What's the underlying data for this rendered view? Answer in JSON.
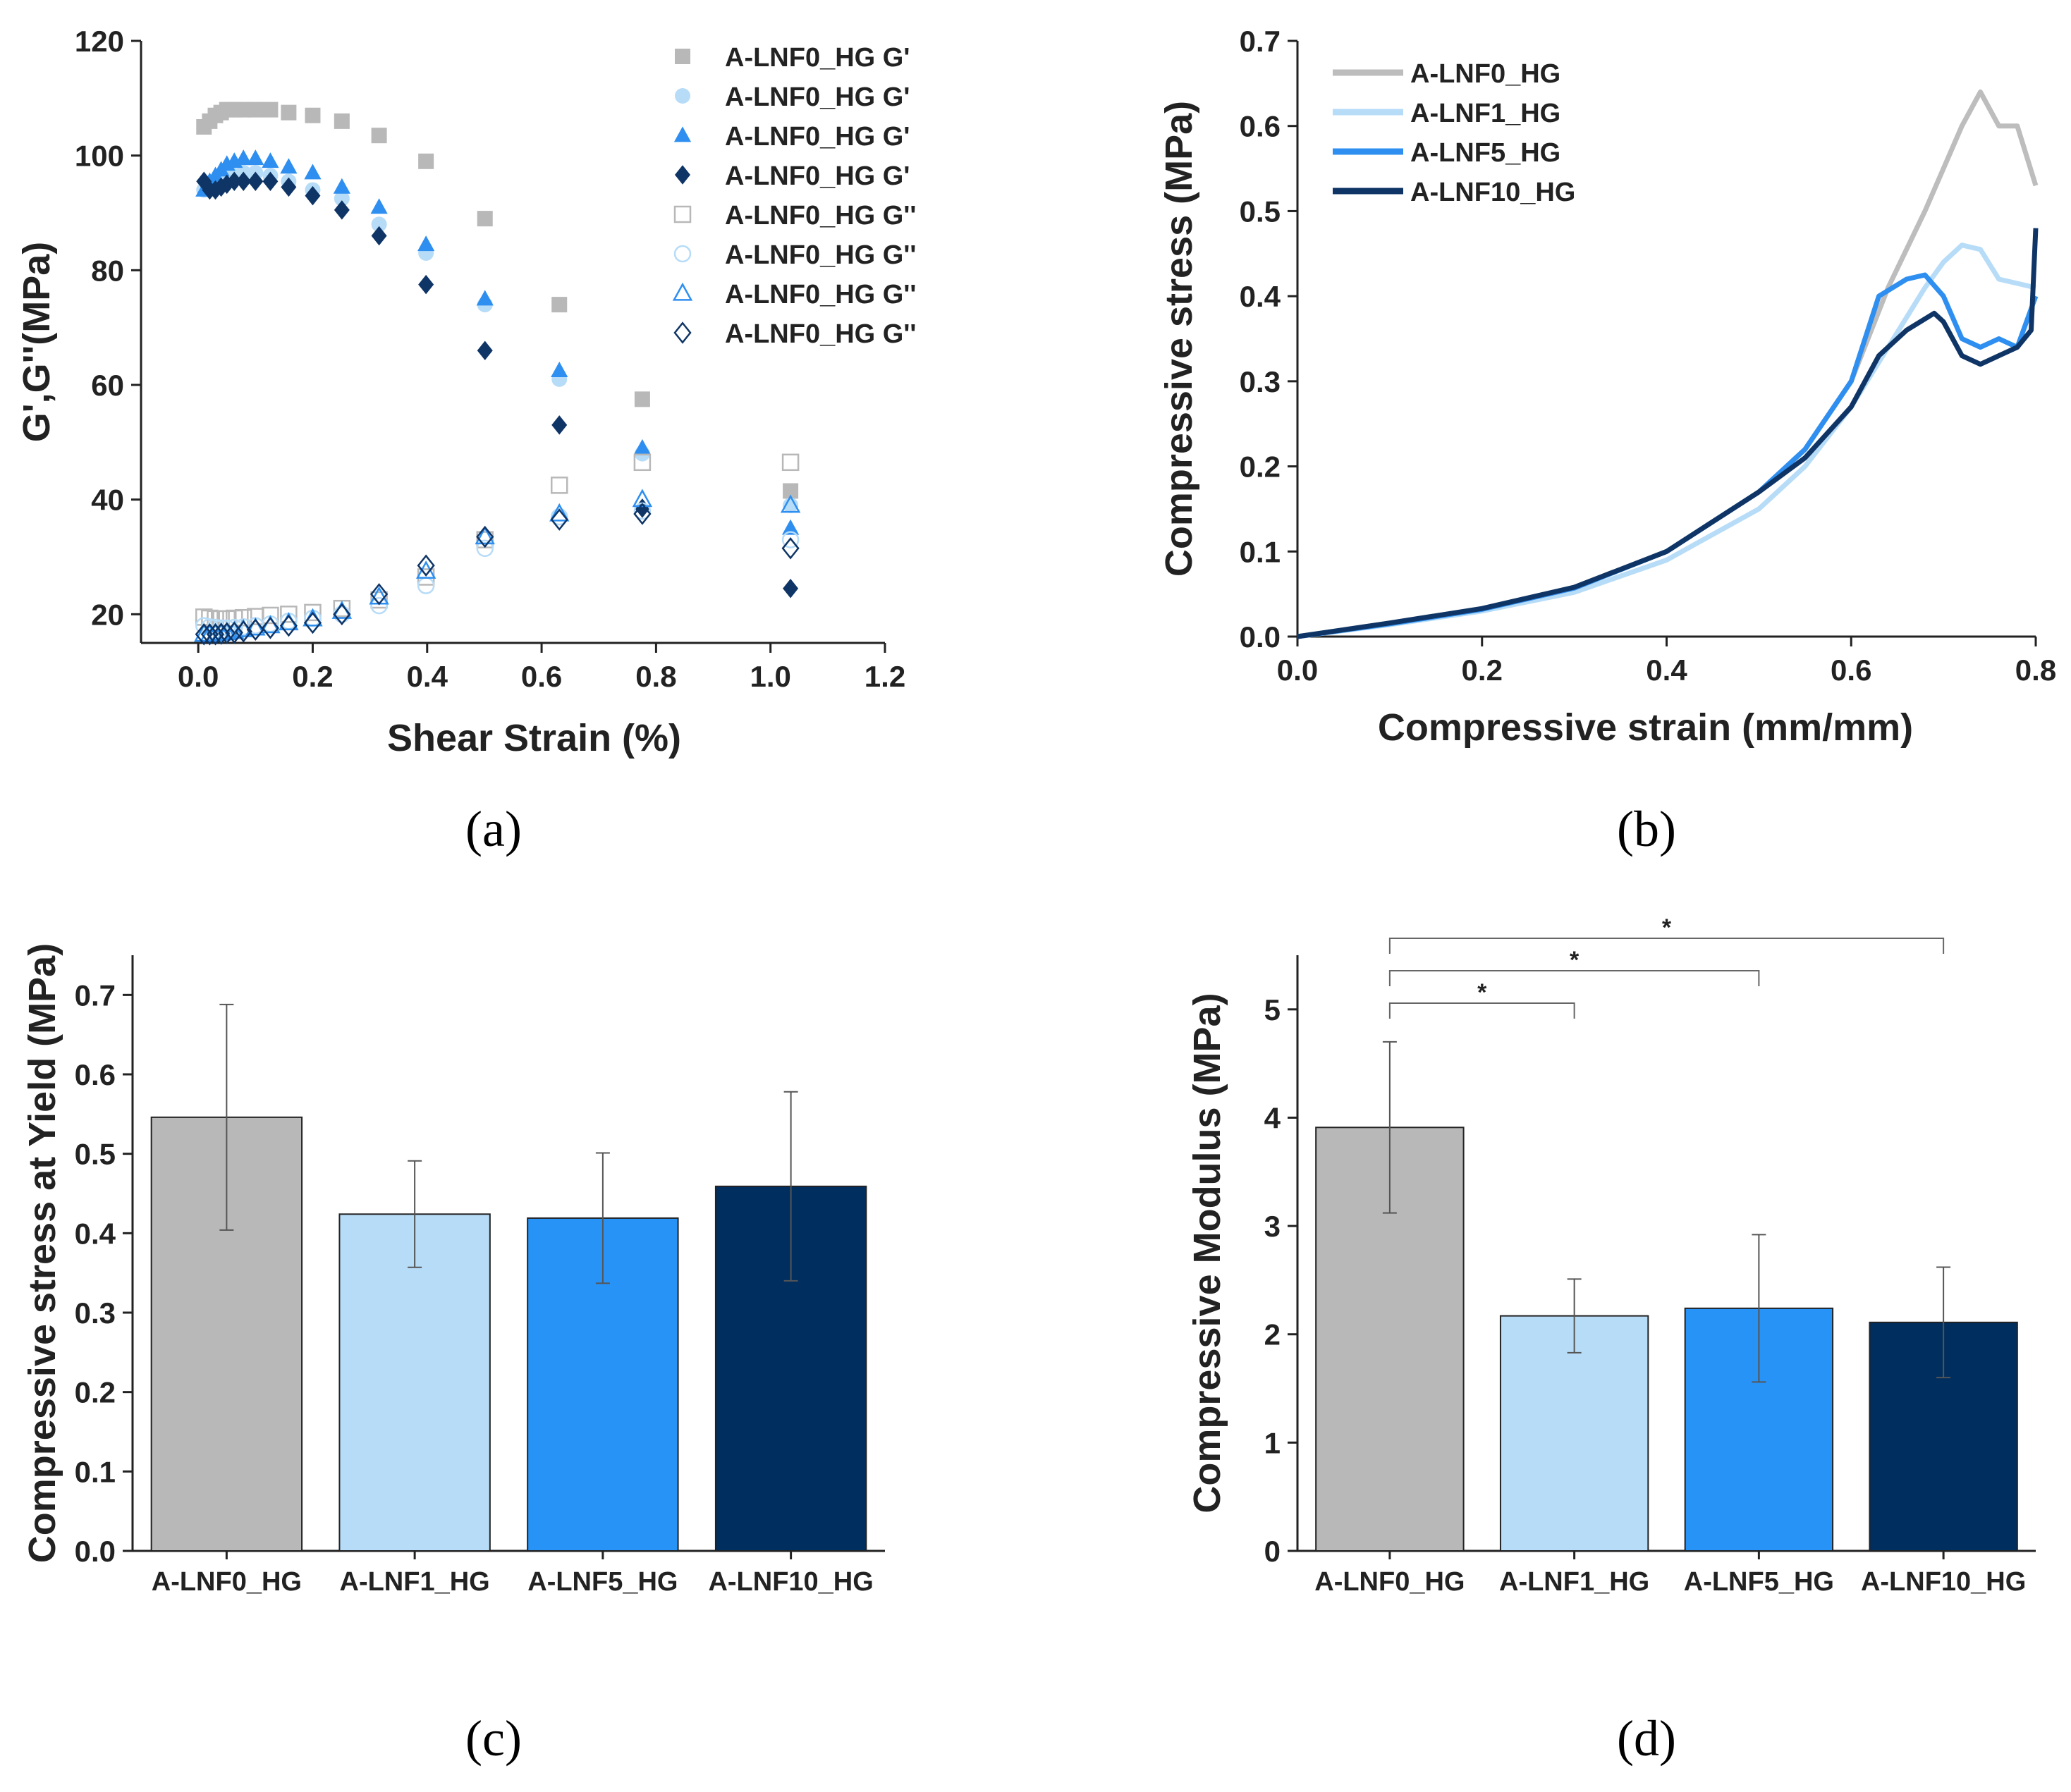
{
  "chart_data": [
    {
      "panel": "(a)",
      "type": "scatter",
      "xlabel": "Shear Strain (%)",
      "ylabel": "G',G''(MPa)",
      "xlim": [
        -0.1,
        1.2
      ],
      "ylim": [
        15,
        120
      ],
      "xticks": [
        "0.0",
        "0.2",
        "0.4",
        "0.6",
        "0.8",
        "1.0",
        "1.2"
      ],
      "yticks": [
        "20",
        "40",
        "60",
        "80",
        "100",
        "120"
      ],
      "legend_position": "top-right",
      "series": [
        {
          "name": "A-LNF0_HG G'",
          "color": "#b8b8b8",
          "marker": "square",
          "filled": true,
          "x": [
            0.01,
            0.02,
            0.03,
            0.04,
            0.05,
            0.063,
            0.079,
            0.1,
            0.126,
            0.158,
            0.2,
            0.251,
            0.316,
            0.398,
            0.501,
            0.631,
            0.776,
            1.035
          ],
          "y": [
            105,
            106,
            107,
            107.5,
            108,
            108,
            108,
            108,
            108,
            107.5,
            107,
            106,
            103.5,
            99,
            89,
            74,
            57.5,
            41.5
          ]
        },
        {
          "name": "A-LNF0_HG G'",
          "color": "#b7dcf8",
          "marker": "circle",
          "filled": true,
          "x": [
            0.01,
            0.02,
            0.03,
            0.04,
            0.05,
            0.063,
            0.079,
            0.1,
            0.126,
            0.158,
            0.2,
            0.251,
            0.316,
            0.398,
            0.501,
            0.631,
            0.776,
            1.035
          ],
          "y": [
            94,
            94.5,
            95,
            95.5,
            96,
            96.5,
            97,
            97,
            96.5,
            95.5,
            94,
            92.5,
            88,
            83,
            74,
            61,
            48,
            39
          ]
        },
        {
          "name": "A-LNF0_HG G'",
          "color": "#2e8ff0",
          "marker": "triangle",
          "filled": true,
          "x": [
            0.01,
            0.02,
            0.03,
            0.04,
            0.05,
            0.063,
            0.079,
            0.1,
            0.126,
            0.158,
            0.2,
            0.251,
            0.316,
            0.398,
            0.501,
            0.631,
            0.776,
            1.035
          ],
          "y": [
            94,
            95.5,
            96.5,
            97.5,
            98.5,
            99,
            99.5,
            99.5,
            99,
            98,
            97,
            94.5,
            91,
            84.5,
            75,
            62.5,
            49,
            35
          ]
        },
        {
          "name": "A-LNF0_HG G'",
          "color": "#0f3566",
          "marker": "diamond",
          "filled": true,
          "x": [
            0.01,
            0.02,
            0.03,
            0.04,
            0.05,
            0.063,
            0.079,
            0.1,
            0.126,
            0.158,
            0.2,
            0.251,
            0.316,
            0.398,
            0.501,
            0.631,
            0.776,
            1.035
          ],
          "y": [
            95.5,
            94,
            94,
            94.5,
            95,
            95.5,
            95.5,
            95.5,
            95.5,
            94.5,
            93,
            90.5,
            86,
            77.5,
            66,
            53,
            38.5,
            24.5
          ]
        },
        {
          "name": "A-LNF0_HG G''",
          "color": "#b8b8b8",
          "marker": "square",
          "filled": false,
          "x": [
            0.01,
            0.02,
            0.03,
            0.04,
            0.05,
            0.063,
            0.079,
            0.1,
            0.126,
            0.158,
            0.2,
            0.251,
            0.316,
            0.398,
            0.501,
            0.631,
            0.776,
            1.035
          ],
          "y": [
            19.5,
            19.3,
            19.2,
            19.2,
            19.2,
            19.3,
            19.4,
            19.6,
            19.8,
            20,
            20.3,
            21,
            22.5,
            26.5,
            33,
            42.5,
            46.5,
            46.5
          ]
        },
        {
          "name": "A-LNF0_HG G''",
          "color": "#b7dcf8",
          "marker": "circle",
          "filled": false,
          "x": [
            0.01,
            0.02,
            0.03,
            0.04,
            0.05,
            0.063,
            0.079,
            0.1,
            0.126,
            0.158,
            0.2,
            0.251,
            0.316,
            0.398,
            0.501,
            0.631,
            0.776,
            1.035
          ],
          "y": [
            18,
            17.8,
            17.7,
            17.6,
            17.6,
            17.7,
            17.8,
            18,
            18.3,
            18.8,
            19.3,
            20,
            21.5,
            25,
            31.5,
            37,
            38,
            33
          ]
        },
        {
          "name": "A-LNF0_HG G''",
          "color": "#2e8ff0",
          "marker": "triangle",
          "filled": false,
          "x": [
            0.01,
            0.02,
            0.03,
            0.04,
            0.05,
            0.063,
            0.079,
            0.1,
            0.126,
            0.158,
            0.2,
            0.251,
            0.316,
            0.398,
            0.501,
            0.631,
            0.776,
            1.035
          ],
          "y": [
            16.5,
            16.5,
            16.6,
            16.7,
            16.8,
            17,
            17.3,
            17.6,
            18,
            18.5,
            19.2,
            20.5,
            23,
            27.5,
            33.5,
            37.5,
            40,
            39
          ]
        },
        {
          "name": "A-LNF0_HG G''",
          "color": "#0f3566",
          "marker": "diamond",
          "filled": false,
          "x": [
            0.01,
            0.02,
            0.03,
            0.04,
            0.05,
            0.063,
            0.079,
            0.1,
            0.126,
            0.158,
            0.2,
            0.251,
            0.316,
            0.398,
            0.501,
            0.631,
            0.776,
            1.035
          ],
          "y": [
            16.5,
            16.5,
            16.5,
            16.6,
            16.7,
            16.8,
            17,
            17.3,
            17.6,
            18,
            18.5,
            20,
            23.5,
            28.5,
            33.5,
            36.5,
            37.5,
            31.5
          ]
        }
      ]
    },
    {
      "panel": "(b)",
      "type": "line",
      "xlabel": "Compressive strain (mm/mm)",
      "ylabel": "Compressive stress (MPa)",
      "xlim": [
        0,
        0.8
      ],
      "ylim": [
        0,
        0.7
      ],
      "xticks": [
        "0.0",
        "0.2",
        "0.4",
        "0.6",
        "0.8"
      ],
      "yticks": [
        "0.0",
        "0.1",
        "0.2",
        "0.3",
        "0.4",
        "0.5",
        "0.6",
        "0.7"
      ],
      "legend_position": "top-left",
      "series": [
        {
          "name": "A-LNF0_HG",
          "color": "#bdbdbd",
          "x": [
            0,
            0.1,
            0.2,
            0.3,
            0.4,
            0.5,
            0.55,
            0.6,
            0.64,
            0.68,
            0.7,
            0.72,
            0.74,
            0.76,
            0.78,
            0.8
          ],
          "y": [
            0,
            0.015,
            0.032,
            0.058,
            0.1,
            0.17,
            0.22,
            0.3,
            0.41,
            0.5,
            0.55,
            0.6,
            0.64,
            0.6,
            0.6,
            0.53
          ]
        },
        {
          "name": "A-LNF1_HG",
          "color": "#b7dcf8",
          "x": [
            0,
            0.1,
            0.2,
            0.3,
            0.4,
            0.5,
            0.55,
            0.6,
            0.64,
            0.68,
            0.7,
            0.72,
            0.74,
            0.76,
            0.78,
            0.8
          ],
          "y": [
            0,
            0.014,
            0.03,
            0.052,
            0.09,
            0.15,
            0.2,
            0.27,
            0.34,
            0.41,
            0.44,
            0.46,
            0.455,
            0.42,
            0.415,
            0.41
          ]
        },
        {
          "name": "A-LNF5_HG",
          "color": "#2e8ff0",
          "x": [
            0,
            0.1,
            0.2,
            0.3,
            0.4,
            0.5,
            0.55,
            0.6,
            0.63,
            0.66,
            0.68,
            0.7,
            0.72,
            0.74,
            0.76,
            0.78,
            0.8
          ],
          "y": [
            0,
            0.015,
            0.032,
            0.057,
            0.1,
            0.17,
            0.22,
            0.3,
            0.4,
            0.42,
            0.425,
            0.4,
            0.35,
            0.34,
            0.35,
            0.34,
            0.4
          ]
        },
        {
          "name": "A-LNF10_HG",
          "color": "#0f3566",
          "x": [
            0,
            0.1,
            0.2,
            0.3,
            0.4,
            0.5,
            0.55,
            0.6,
            0.63,
            0.66,
            0.69,
            0.7,
            0.72,
            0.74,
            0.76,
            0.78,
            0.795,
            0.8
          ],
          "y": [
            0,
            0.016,
            0.033,
            0.058,
            0.1,
            0.17,
            0.21,
            0.27,
            0.33,
            0.36,
            0.38,
            0.37,
            0.33,
            0.32,
            0.33,
            0.34,
            0.36,
            0.48
          ]
        }
      ]
    },
    {
      "panel": "(c)",
      "type": "bar",
      "ylabel": "Compressive stress at Yield (MPa)",
      "categories": [
        "A-LNF0_HG",
        "A-LNF1_HG",
        "A-LNF5_HG",
        "A-LNF10_HG"
      ],
      "values": [
        0.546,
        0.424,
        0.419,
        0.459
      ],
      "errors": [
        0.142,
        0.067,
        0.082,
        0.119
      ],
      "colors": [
        "#b8b8b8",
        "#b7dcf8",
        "#2893f7",
        "#002e5e"
      ],
      "ylim": [
        0,
        0.75
      ],
      "yticks": [
        "0.0",
        "0.1",
        "0.2",
        "0.3",
        "0.4",
        "0.5",
        "0.6",
        "0.7"
      ]
    },
    {
      "panel": "(d)",
      "type": "bar",
      "ylabel": "Compressive Modulus (MPa)",
      "categories": [
        "A-LNF0_HG",
        "A-LNF1_HG",
        "A-LNF5_HG",
        "A-LNF10_HG"
      ],
      "values": [
        3.91,
        2.17,
        2.24,
        2.11
      ],
      "errors": [
        0.79,
        0.34,
        0.68,
        0.51
      ],
      "colors": [
        "#b8b8b8",
        "#b7dcf8",
        "#2893f7",
        "#002e5e"
      ],
      "ylim": [
        0,
        5.5
      ],
      "yticks": [
        "0",
        "1",
        "2",
        "3",
        "4",
        "5"
      ],
      "significance": [
        {
          "from": 0,
          "to": 1,
          "label": "*"
        },
        {
          "from": 0,
          "to": 2,
          "label": "*"
        },
        {
          "from": 0,
          "to": 3,
          "label": "*"
        }
      ]
    }
  ]
}
